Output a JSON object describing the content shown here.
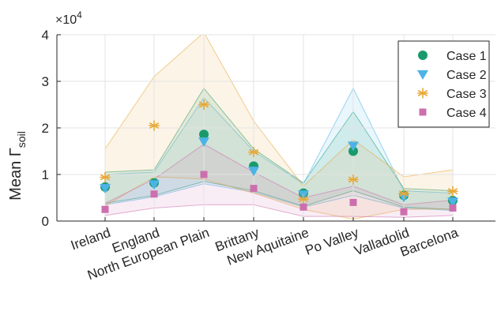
{
  "chart_data": {
    "type": "scatter",
    "ylabel_main": "Mean Γ",
    "ylabel_sub": "soil",
    "exponent_label": "×10",
    "exponent_power": "4",
    "ylim": [
      0,
      40000
    ],
    "yticks": [
      0,
      10000,
      20000,
      30000,
      40000
    ],
    "ytick_labels": [
      "0",
      "1",
      "2",
      "3",
      "4"
    ],
    "grid": true,
    "legend_position": "top-right",
    "categories": [
      "Ireland",
      "England",
      "North European Plain",
      "Brittany",
      "New Aquitaine",
      "Po Valley",
      "Valladolid",
      "Barcelona"
    ],
    "series": [
      {
        "name": "Case 1",
        "marker": "circle",
        "color": "#1a9a6c",
        "values": [
          7300,
          8200,
          18600,
          11800,
          6000,
          15000,
          5500,
          4400
        ],
        "band_lower": [
          3800,
          5500,
          8500,
          6500,
          3200,
          6500,
          3000,
          2500
        ],
        "band_upper": [
          10500,
          11000,
          28500,
          15500,
          8200,
          23500,
          7000,
          6500
        ]
      },
      {
        "name": "Case 2",
        "marker": "triangle-down",
        "color": "#4db3e6",
        "values": [
          7100,
          7900,
          17100,
          10800,
          5700,
          16200,
          5200,
          4200
        ],
        "band_lower": [
          3500,
          5200,
          8000,
          6200,
          3000,
          5500,
          2800,
          2300
        ],
        "band_upper": [
          10000,
          10500,
          26500,
          15000,
          8000,
          28500,
          6500,
          6000
        ]
      },
      {
        "name": "Case 3",
        "marker": "asterisk",
        "color": "#e8a838",
        "values": [
          9400,
          20500,
          25000,
          14800,
          4700,
          8900,
          5900,
          6400
        ],
        "band_lower": [
          3200,
          9500,
          9000,
          6000,
          2500,
          400,
          2500,
          2600
        ],
        "band_upper": [
          15500,
          31000,
          40500,
          21500,
          7500,
          17500,
          9500,
          11000
        ]
      },
      {
        "name": "Case 4",
        "marker": "square",
        "color": "#cc6fae",
        "values": [
          2500,
          5800,
          10000,
          7000,
          3000,
          4000,
          2000,
          2800
        ],
        "band_lower": [
          1200,
          2800,
          3500,
          3500,
          1000,
          1000,
          800,
          1200
        ],
        "band_upper": [
          3800,
          9000,
          16500,
          10500,
          5000,
          7500,
          3500,
          4500
        ]
      }
    ]
  }
}
